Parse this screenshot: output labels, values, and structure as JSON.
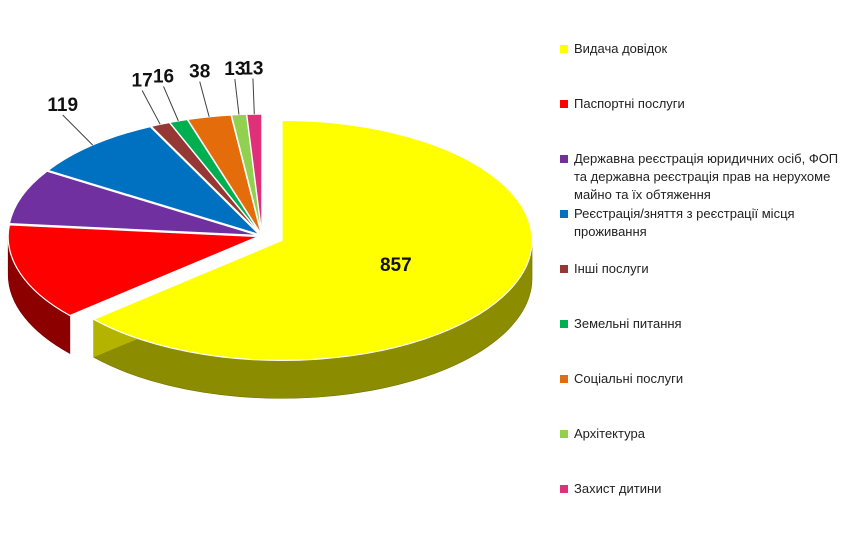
{
  "chart_data": {
    "type": "pie",
    "title": "",
    "categories": [
      "Видача довідок",
      "Паспортні послуги",
      "Державна реєстрація юридичних осіб, ФОП та державна реєстрація прав на нерухоме майно та їх обтяження",
      "Реєстрація/зняття з реєстрації місця проживання",
      "Інші послуги",
      "Земельні питання",
      "Соціальні послуги",
      "Архітектура",
      "Захист дитини"
    ],
    "values": [
      857,
      175,
      100,
      119,
      17,
      16,
      38,
      13,
      13
    ],
    "value_labels": [
      "857",
      "175",
      "100",
      "119",
      "17",
      "16",
      "38",
      "13",
      "13"
    ],
    "colors": [
      "#ffff00",
      "#ff0000",
      "#7030a0",
      "#0070c0",
      "#953735",
      "#00b050",
      "#e46c0a",
      "#92d050",
      "#e0307a"
    ],
    "legend_position": "right",
    "style": "3d-exploded"
  }
}
